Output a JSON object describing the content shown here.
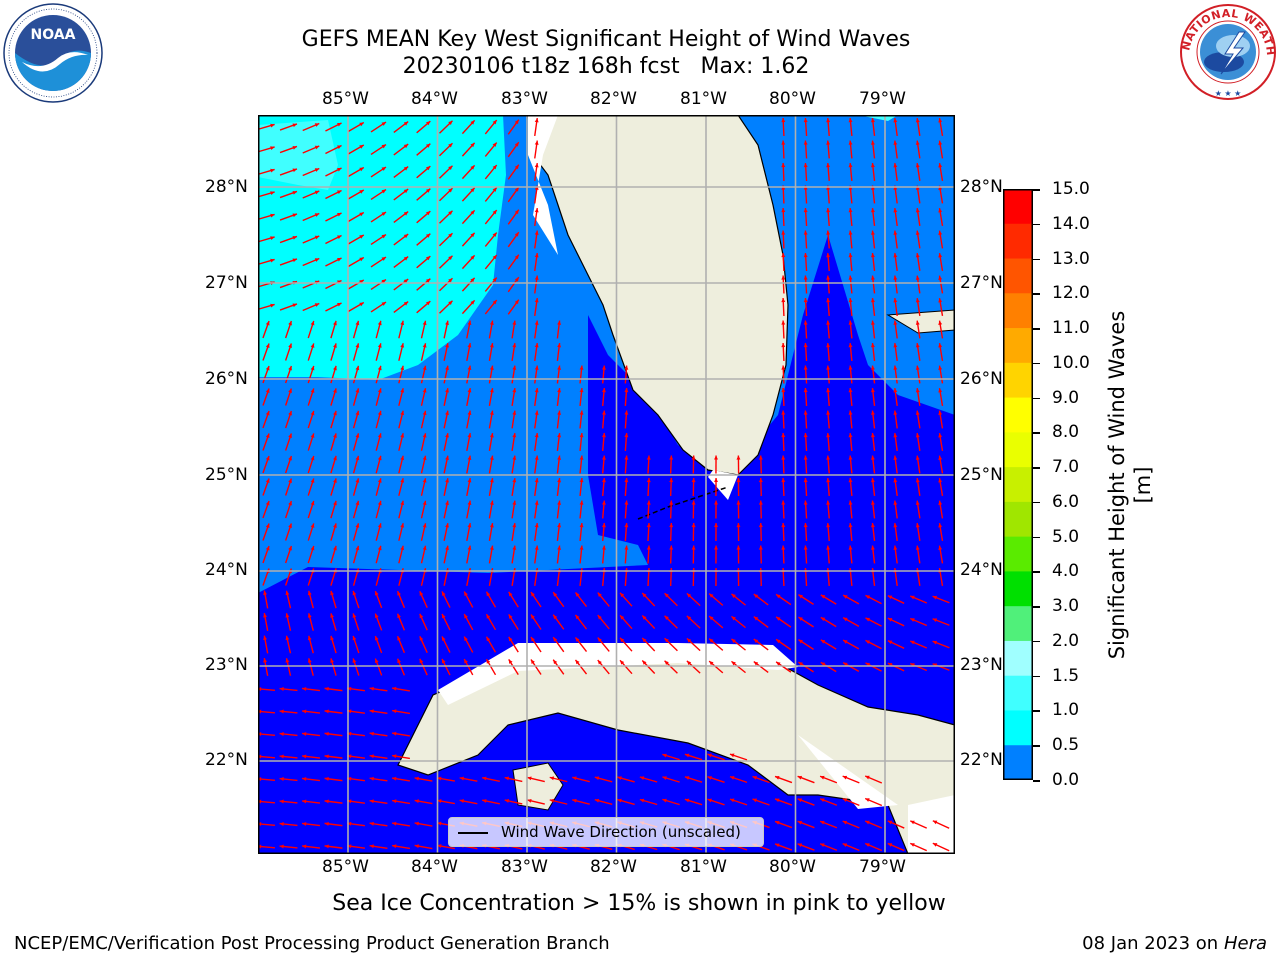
{
  "title": {
    "line1": "GEFS MEAN Key West Significant Height of Wind Waves",
    "line2": "20230106 t18z 168h fcst   Max: 1.62"
  },
  "map": {
    "lon_ticks_top": [
      "85°W",
      "84°W",
      "83°W",
      "82°W",
      "81°W",
      "80°W",
      "79°W"
    ],
    "lon_ticks_bottom": [
      "85°W",
      "84°W",
      "83°W",
      "82°W",
      "81°W",
      "80°W",
      "79°W"
    ],
    "lat_ticks_left": [
      "28°N",
      "27°N",
      "26°N",
      "25°N",
      "24°N",
      "23°N",
      "22°N"
    ],
    "lat_ticks_right": [
      "28°N",
      "27°N",
      "26°N",
      "25°N",
      "24°N",
      "23°N",
      "22°N"
    ],
    "legend_label": "Wind Wave Direction (unscaled)",
    "colors": {
      "land": "#eeeedd",
      "ocean_0_05": "#0000ff",
      "ocean_05_10": "#0080ff",
      "ocean_10_15": "#00ffff",
      "ocean_15_20": "#40ffff",
      "arrows": "#ff0000",
      "grid": "#b0b0b0"
    }
  },
  "colorbar": {
    "label": "Significant Height of Wind Waves [m]",
    "ticks": [
      "15.0",
      "14.0",
      "13.0",
      "12.0",
      "11.0",
      "10.0",
      "9.0",
      "8.0",
      "7.0",
      "6.0",
      "5.0",
      "4.0",
      "3.0",
      "2.0",
      "1.5",
      "1.0",
      "0.5",
      "0.0"
    ],
    "colors": [
      "#ff0000",
      "#ff2a00",
      "#ff5500",
      "#ff8000",
      "#ffaa00",
      "#ffd400",
      "#ffff00",
      "#eaff00",
      "#c8f000",
      "#a0e600",
      "#5aeb00",
      "#00e000",
      "#00e600",
      "#50f07a",
      "#a0ffff",
      "#40ffff",
      "#00ffff",
      "#0080ff",
      "#0000ff"
    ]
  },
  "note": "Sea Ice Concentration > 15% is shown in pink to yellow",
  "footer": {
    "left": "NCEP/EMC/Verification Post Processing Product Generation Branch",
    "right_date": "08 Jan 2023 on ",
    "right_host": "Hera"
  },
  "logos": {
    "noaa_text": "NOAA",
    "nws_text": "NATIONAL WEATHER SERVICE"
  }
}
